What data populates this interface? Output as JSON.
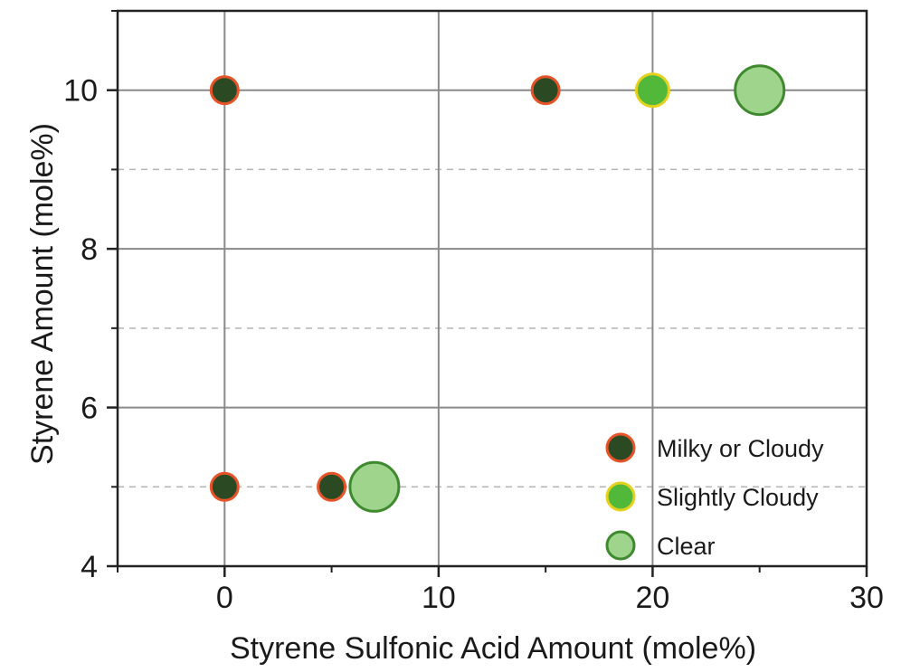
{
  "chart_data": {
    "type": "scatter",
    "xlabel": "Styrene Sulfonic Acid Amount (mole%)",
    "ylabel": "Styrene Amount (mole%)",
    "xlim": [
      -5,
      30
    ],
    "ylim": [
      4,
      11
    ],
    "x_ticks": [
      0,
      10,
      20,
      30
    ],
    "y_ticks": [
      4,
      6,
      8,
      10
    ],
    "y_minor_gridlines": [
      5,
      7,
      9
    ],
    "grid": true,
    "legend_position": "bottom-right",
    "series": [
      {
        "name": "Milky or Cloudy",
        "fill": "#2b4a24",
        "stroke": "#e8542a",
        "points": [
          {
            "x": 0,
            "y": 10
          },
          {
            "x": 15,
            "y": 10
          },
          {
            "x": 0,
            "y": 5
          },
          {
            "x": 5,
            "y": 5
          }
        ]
      },
      {
        "name": "Slightly Cloudy",
        "fill": "#52b83a",
        "stroke": "#e6d21e",
        "points": [
          {
            "x": 20,
            "y": 10
          }
        ]
      },
      {
        "name": "Clear",
        "fill": "#9ed48c",
        "stroke": "#3f8a2e",
        "points": [
          {
            "x": 25,
            "y": 10
          },
          {
            "x": 7,
            "y": 5
          }
        ]
      }
    ]
  }
}
